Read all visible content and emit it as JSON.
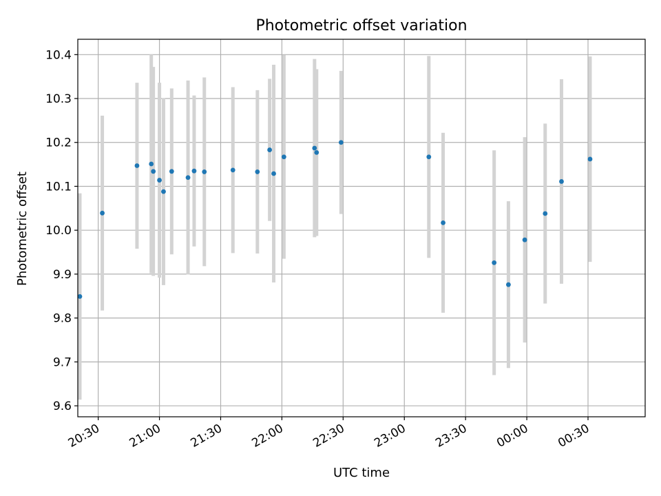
{
  "chart_data": {
    "type": "scatter",
    "title": "Photometric offset variation",
    "xlabel": "UTC time",
    "ylabel": "Photometric offset",
    "x_axis": {
      "kind": "time",
      "range": [
        "20:20",
        "00:58"
      ],
      "ticks": [
        "20:30",
        "21:00",
        "21:30",
        "22:00",
        "22:30",
        "23:00",
        "23:30",
        "00:00",
        "00:30"
      ]
    },
    "y_axis": {
      "range": [
        9.575,
        10.435
      ],
      "ticks": [
        "9.6",
        "9.7",
        "9.8",
        "9.9",
        "10.0",
        "10.1",
        "10.2",
        "10.3",
        "10.4"
      ]
    },
    "grid": true,
    "colors": {
      "point": "#1f77b4",
      "errorbar": "#d3d3d3",
      "grid": "#b0b0b0",
      "axes": "#000000"
    },
    "points": [
      {
        "x": "20:21",
        "y": 9.849,
        "err": 0.235
      },
      {
        "x": "20:32",
        "y": 10.039,
        "err": 0.222
      },
      {
        "x": "20:49",
        "y": 10.147,
        "err": 0.189
      },
      {
        "x": "20:56",
        "y": 10.151,
        "err": 0.249
      },
      {
        "x": "20:57",
        "y": 10.134,
        "err": 0.238
      },
      {
        "x": "21:00",
        "y": 10.114,
        "err": 0.222
      },
      {
        "x": "21:02",
        "y": 10.088,
        "err": 0.213
      },
      {
        "x": "21:06",
        "y": 10.134,
        "err": 0.189
      },
      {
        "x": "21:14",
        "y": 10.12,
        "err": 0.221
      },
      {
        "x": "21:17",
        "y": 10.135,
        "err": 0.172
      },
      {
        "x": "21:22",
        "y": 10.133,
        "err": 0.215
      },
      {
        "x": "21:36",
        "y": 10.137,
        "err": 0.189
      },
      {
        "x": "21:48",
        "y": 10.133,
        "err": 0.186
      },
      {
        "x": "21:54",
        "y": 10.183,
        "err": 0.162
      },
      {
        "x": "21:56",
        "y": 10.129,
        "err": 0.248
      },
      {
        "x": "22:01",
        "y": 10.167,
        "err": 0.232
      },
      {
        "x": "22:16",
        "y": 10.187,
        "err": 0.203
      },
      {
        "x": "22:17",
        "y": 10.177,
        "err": 0.19
      },
      {
        "x": "22:29",
        "y": 10.2,
        "err": 0.163
      },
      {
        "x": "23:12",
        "y": 10.167,
        "err": 0.23
      },
      {
        "x": "23:19",
        "y": 10.017,
        "err": 0.205
      },
      {
        "x": "23:44",
        "y": 9.926,
        "err": 0.256
      },
      {
        "x": "23:51",
        "y": 9.876,
        "err": 0.19
      },
      {
        "x": "23:59",
        "y": 9.978,
        "err": 0.234
      },
      {
        "x": "00:09",
        "y": 10.038,
        "err": 0.205
      },
      {
        "x": "00:17",
        "y": 10.111,
        "err": 0.233
      },
      {
        "x": "00:31",
        "y": 10.162,
        "err": 0.234
      }
    ]
  }
}
